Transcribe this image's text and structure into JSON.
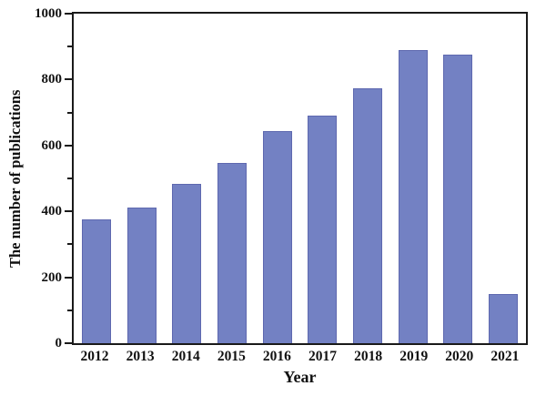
{
  "chart_data": {
    "type": "bar",
    "title": "",
    "xlabel": "Year",
    "ylabel": "The number of publications",
    "categories": [
      "2012",
      "2013",
      "2014",
      "2015",
      "2016",
      "2017",
      "2018",
      "2019",
      "2020",
      "2021"
    ],
    "values": [
      377,
      412,
      483,
      548,
      644,
      690,
      773,
      890,
      877,
      148
    ],
    "ylim": [
      0,
      1000
    ],
    "y_major_ticks": [
      0,
      200,
      400,
      600,
      800,
      1000
    ],
    "y_minor_ticks": [
      100,
      300,
      500,
      700,
      900
    ],
    "grid": false,
    "legend": null,
    "colors": {
      "bar_fill": "#7381c3",
      "bar_edge": "#5e68af",
      "axis": "#1a1a1a",
      "text": "#111111",
      "background": "#ffffff"
    }
  }
}
